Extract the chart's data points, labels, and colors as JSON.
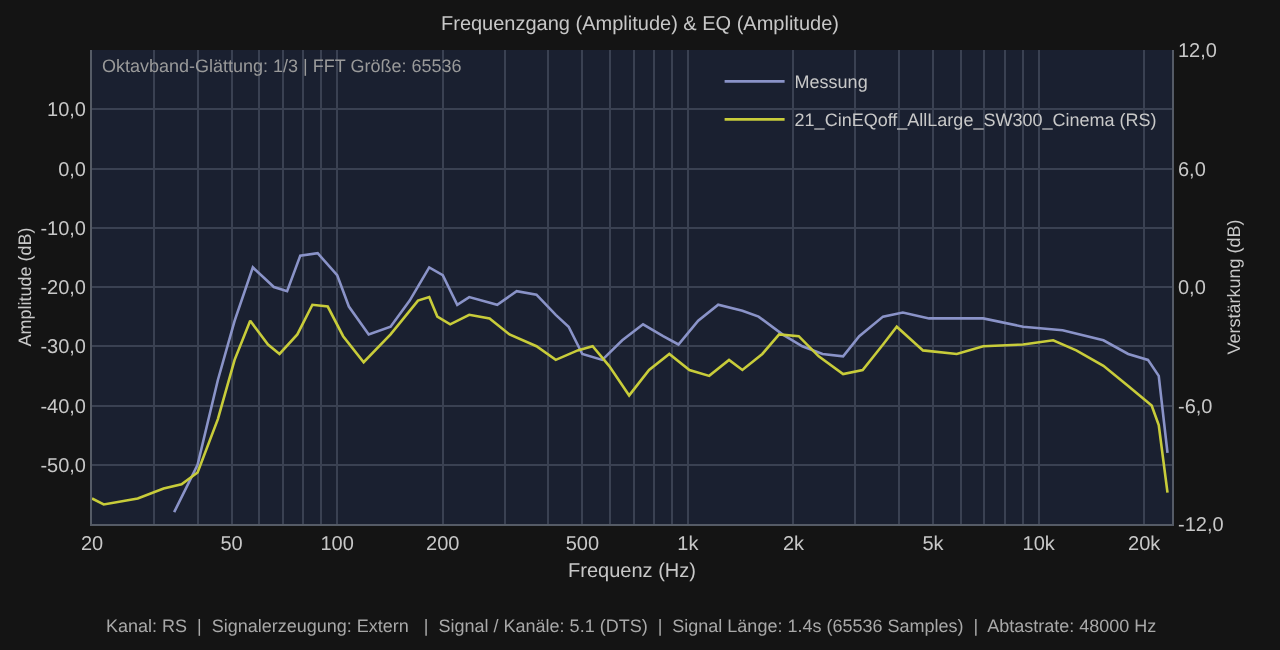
{
  "chart_data": {
    "type": "line",
    "title": "Frequenzgang (Amplitude) & EQ (Amplitude)",
    "xlabel": "Frequenz (Hz)",
    "ylabel": "Amplitude (dB)",
    "y2label": "Verstärkung (dB)",
    "log": "x",
    "grid": true,
    "legend": "top right",
    "marker": "none",
    "line_style": "solid",
    "xlim": [
      20,
      24000
    ],
    "xticks": [
      20,
      {
        "value": 30,
        "label": null
      },
      {
        "value": 40,
        "label": null
      },
      50,
      {
        "value": 60,
        "label": null
      },
      {
        "value": 70,
        "label": null
      },
      {
        "value": 80,
        "label": null
      },
      {
        "value": 90,
        "label": null
      },
      100,
      200,
      {
        "value": 300,
        "label": null
      },
      {
        "value": 400,
        "label": null
      },
      500,
      {
        "value": 600,
        "label": null
      },
      {
        "value": 700,
        "label": null
      },
      {
        "value": 800,
        "label": null
      },
      {
        "value": 900,
        "label": null
      },
      {
        "value": 1000,
        "label": "1k"
      },
      {
        "value": 2000,
        "label": "2k"
      },
      {
        "value": 3000,
        "label": null
      },
      {
        "value": 4000,
        "label": null
      },
      {
        "value": 5000,
        "label": "5k"
      },
      {
        "value": 6000,
        "label": null
      },
      {
        "value": 7000,
        "label": null
      },
      {
        "value": 8000,
        "label": null
      },
      {
        "value": 9000,
        "label": null
      },
      {
        "value": 10000,
        "label": "10k"
      },
      {
        "value": 20000,
        "label": "20k"
      }
    ],
    "ylim": [
      -60,
      20
    ],
    "yticks": [
      {
        "value": -50,
        "label": "-50,0"
      },
      {
        "value": -40,
        "label": "-40,0"
      },
      {
        "value": -30,
        "label": "-30,0"
      },
      {
        "value": -20,
        "label": "-20,0"
      },
      {
        "value": -10,
        "label": "-10,0"
      },
      {
        "value": 0,
        "label": "0,0"
      },
      {
        "value": 10,
        "label": "10,0"
      }
    ],
    "y2lim": [
      -12,
      12
    ],
    "y2ticks": [
      {
        "value": -12,
        "label": "-12,0"
      },
      {
        "value": -6,
        "label": "-6,0"
      },
      {
        "value": 0,
        "label": "0,0"
      },
      {
        "value": 6,
        "label": "6,0"
      },
      {
        "value": 12,
        "label": "12,0"
      }
    ],
    "annotations": [
      "Oktavband-Glättung: 1/3 | FFT Größe: 65536",
      "Kanal: RS  |  Signalerzeugung: Extern   |  Signal / Kanäle: 5.1 (DTS)  |  Signal Länge: 1.4s (65536 Samples)  |  Abtastrate: 48000 Hz"
    ],
    "series": [
      {
        "name": "Messung",
        "color": "#8a93c8",
        "x": [
          34.3,
          40,
          45.7,
          51,
          57.5,
          66,
          72,
          78.5,
          88,
          100,
          108,
          123,
          142,
          161,
          183,
          200,
          220,
          238,
          286,
          325,
          370,
          420,
          457,
          500,
          570,
          650,
          745,
          850,
          940,
          1070,
          1220,
          1430,
          1590,
          1860,
          2120,
          2420,
          2770,
          3080,
          3600,
          4100,
          4870,
          6950,
          9030,
          11700,
          15300,
          18000,
          20500,
          22000,
          23300
        ],
        "values": [
          -58,
          -50,
          -35.7,
          -25.7,
          -16.7,
          -20,
          -20.7,
          -14.7,
          -14.3,
          -18,
          -23.3,
          -28,
          -26.7,
          -22.3,
          -16.7,
          -18,
          -23,
          -21.7,
          -23,
          -20.7,
          -21.3,
          -24.7,
          -26.7,
          -31.3,
          -32.3,
          -29,
          -26.3,
          -28.3,
          -29.7,
          -25.7,
          -23,
          -24,
          -25,
          -28,
          -30,
          -31.3,
          -31.7,
          -28.3,
          -25,
          -24.3,
          -25.3,
          -25.3,
          -26.7,
          -27.3,
          -29,
          -31.3,
          -32.3,
          -35,
          -48
        ]
      },
      {
        "name": "21_CinEQoff_AllLarge_SW300_Cinema (RS)",
        "color": "#c8cc3a",
        "x": [
          20,
          21.6,
          27,
          32,
          36,
          40,
          45.7,
          51,
          56.5,
          63.5,
          68.5,
          77,
          85,
          94,
          104,
          119,
          142,
          170,
          183,
          193,
          210,
          238,
          272,
          310,
          370,
          420,
          485,
          535,
          596,
          680,
          775,
          885,
          1010,
          1150,
          1310,
          1430,
          1630,
          1820,
          2070,
          2360,
          2770,
          3150,
          3600,
          3940,
          4680,
          5840,
          6950,
          9030,
          11000,
          12800,
          15300,
          18000,
          21000,
          22000,
          23300
        ],
        "values": [
          -55.7,
          -56.7,
          -55.7,
          -54,
          -53.3,
          -51.3,
          -42.3,
          -32.3,
          -25.7,
          -29.7,
          -31.3,
          -28,
          -23,
          -23.3,
          -28.3,
          -32.7,
          -28,
          -22.3,
          -21.7,
          -25,
          -26.3,
          -24.7,
          -25.3,
          -28,
          -30,
          -32.3,
          -30.7,
          -30,
          -33.3,
          -38.3,
          -34,
          -31.3,
          -34,
          -35,
          -32.3,
          -34,
          -31.3,
          -28,
          -28.3,
          -31.7,
          -34.7,
          -34,
          -29.7,
          -26.7,
          -30.7,
          -31.3,
          -30,
          -29.7,
          -29,
          -30.7,
          -33.3,
          -36.7,
          -40,
          -43.3,
          -54.7
        ]
      }
    ]
  }
}
